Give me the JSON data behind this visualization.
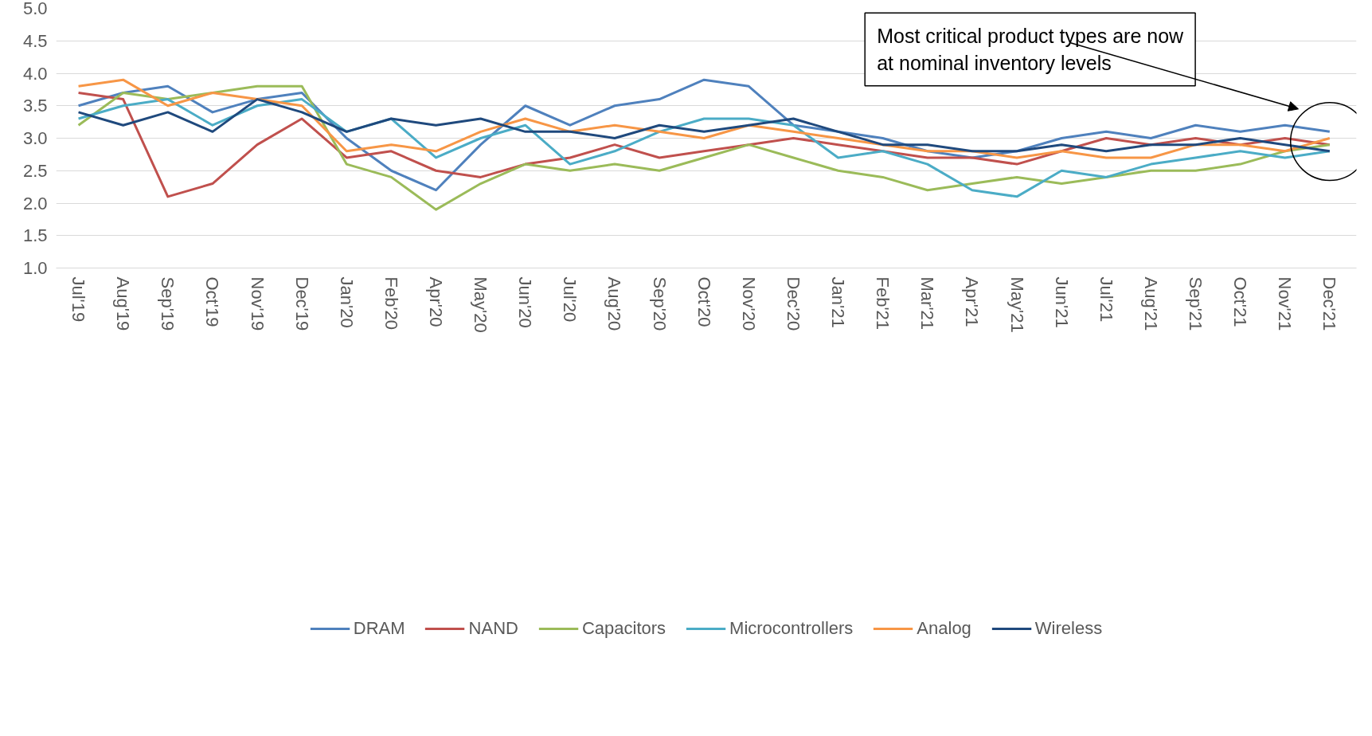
{
  "chart_data": {
    "type": "line",
    "categories": [
      "Jul'19",
      "Aug'19",
      "Sep'19",
      "Oct'19",
      "Nov'19",
      "Dec'19",
      "Jan'20",
      "Feb'20",
      "Apr'20",
      "May'20",
      "Jun'20",
      "Jul'20",
      "Aug'20",
      "Sep'20",
      "Oct'20",
      "Nov'20",
      "Dec'20",
      "Jan'21",
      "Feb'21",
      "Mar'21",
      "Apr'21",
      "May'21",
      "Jun'21",
      "Jul'21",
      "Aug'21",
      "Sep'21",
      "Oct'21",
      "Nov'21",
      "Dec'21"
    ],
    "series": [
      {
        "name": "DRAM",
        "color": "#4f81bd",
        "values": [
          3.5,
          3.7,
          3.8,
          3.4,
          3.6,
          3.7,
          3.0,
          2.5,
          2.2,
          2.9,
          3.5,
          3.2,
          3.5,
          3.6,
          3.9,
          3.8,
          3.2,
          3.1,
          3.0,
          2.8,
          2.7,
          2.8,
          3.0,
          3.1,
          3.0,
          3.2,
          3.1,
          3.2,
          3.1
        ]
      },
      {
        "name": "NAND",
        "color": "#c0504d",
        "values": [
          3.7,
          3.6,
          2.1,
          2.3,
          2.9,
          3.3,
          2.7,
          2.8,
          2.5,
          2.4,
          2.6,
          2.7,
          2.9,
          2.7,
          2.8,
          2.9,
          3.0,
          2.9,
          2.8,
          2.7,
          2.7,
          2.6,
          2.8,
          3.0,
          2.9,
          3.0,
          2.9,
          3.0,
          2.9
        ]
      },
      {
        "name": "Capacitors",
        "color": "#9bbb59",
        "values": [
          3.2,
          3.7,
          3.6,
          3.7,
          3.8,
          3.8,
          2.6,
          2.4,
          1.9,
          2.3,
          2.6,
          2.5,
          2.6,
          2.5,
          2.7,
          2.9,
          2.7,
          2.5,
          2.4,
          2.2,
          2.3,
          2.4,
          2.3,
          2.4,
          2.5,
          2.5,
          2.6,
          2.8,
          2.9
        ]
      },
      {
        "name": "Microcontrollers",
        "color": "#4bacc6",
        "values": [
          3.3,
          3.5,
          3.6,
          3.2,
          3.5,
          3.6,
          3.1,
          3.3,
          2.7,
          3.0,
          3.2,
          2.6,
          2.8,
          3.1,
          3.3,
          3.3,
          3.2,
          2.7,
          2.8,
          2.6,
          2.2,
          2.1,
          2.5,
          2.4,
          2.6,
          2.7,
          2.8,
          2.7,
          2.8
        ]
      },
      {
        "name": "Analog",
        "color": "#f79646",
        "values": [
          3.8,
          3.9,
          3.5,
          3.7,
          3.6,
          3.5,
          2.8,
          2.9,
          2.8,
          3.1,
          3.3,
          3.1,
          3.2,
          3.1,
          3.0,
          3.2,
          3.1,
          3.0,
          2.9,
          2.8,
          2.8,
          2.7,
          2.8,
          2.7,
          2.7,
          2.9,
          2.9,
          2.8,
          3.0
        ]
      },
      {
        "name": "Wireless",
        "color": "#1f497d",
        "values": [
          3.4,
          3.2,
          3.4,
          3.1,
          3.6,
          3.4,
          3.1,
          3.3,
          3.2,
          3.3,
          3.1,
          3.1,
          3.0,
          3.2,
          3.1,
          3.2,
          3.3,
          3.1,
          2.9,
          2.9,
          2.8,
          2.8,
          2.9,
          2.8,
          2.9,
          2.9,
          3.0,
          2.9,
          2.8
        ]
      }
    ],
    "ylim": [
      1.0,
      5.0
    ],
    "yticks": [
      {
        "value": 1.0,
        "label": "1.0"
      },
      {
        "value": 1.5,
        "label": "1.5"
      },
      {
        "value": 2.0,
        "label": "2.0"
      },
      {
        "value": 2.5,
        "label": "2.5"
      },
      {
        "value": 3.0,
        "label": "3.0"
      },
      {
        "value": 3.5,
        "label": "3.5"
      },
      {
        "value": 4.0,
        "label": "4.0"
      },
      {
        "value": 4.5,
        "label": "4.5"
      },
      {
        "value": 5.0,
        "label": "5.0"
      }
    ],
    "annotations": [
      "Most critical product types are now at nominal inventory levels"
    ],
    "grid": "y",
    "legend": "bottom",
    "marker": "none",
    "line_style": "solid"
  }
}
